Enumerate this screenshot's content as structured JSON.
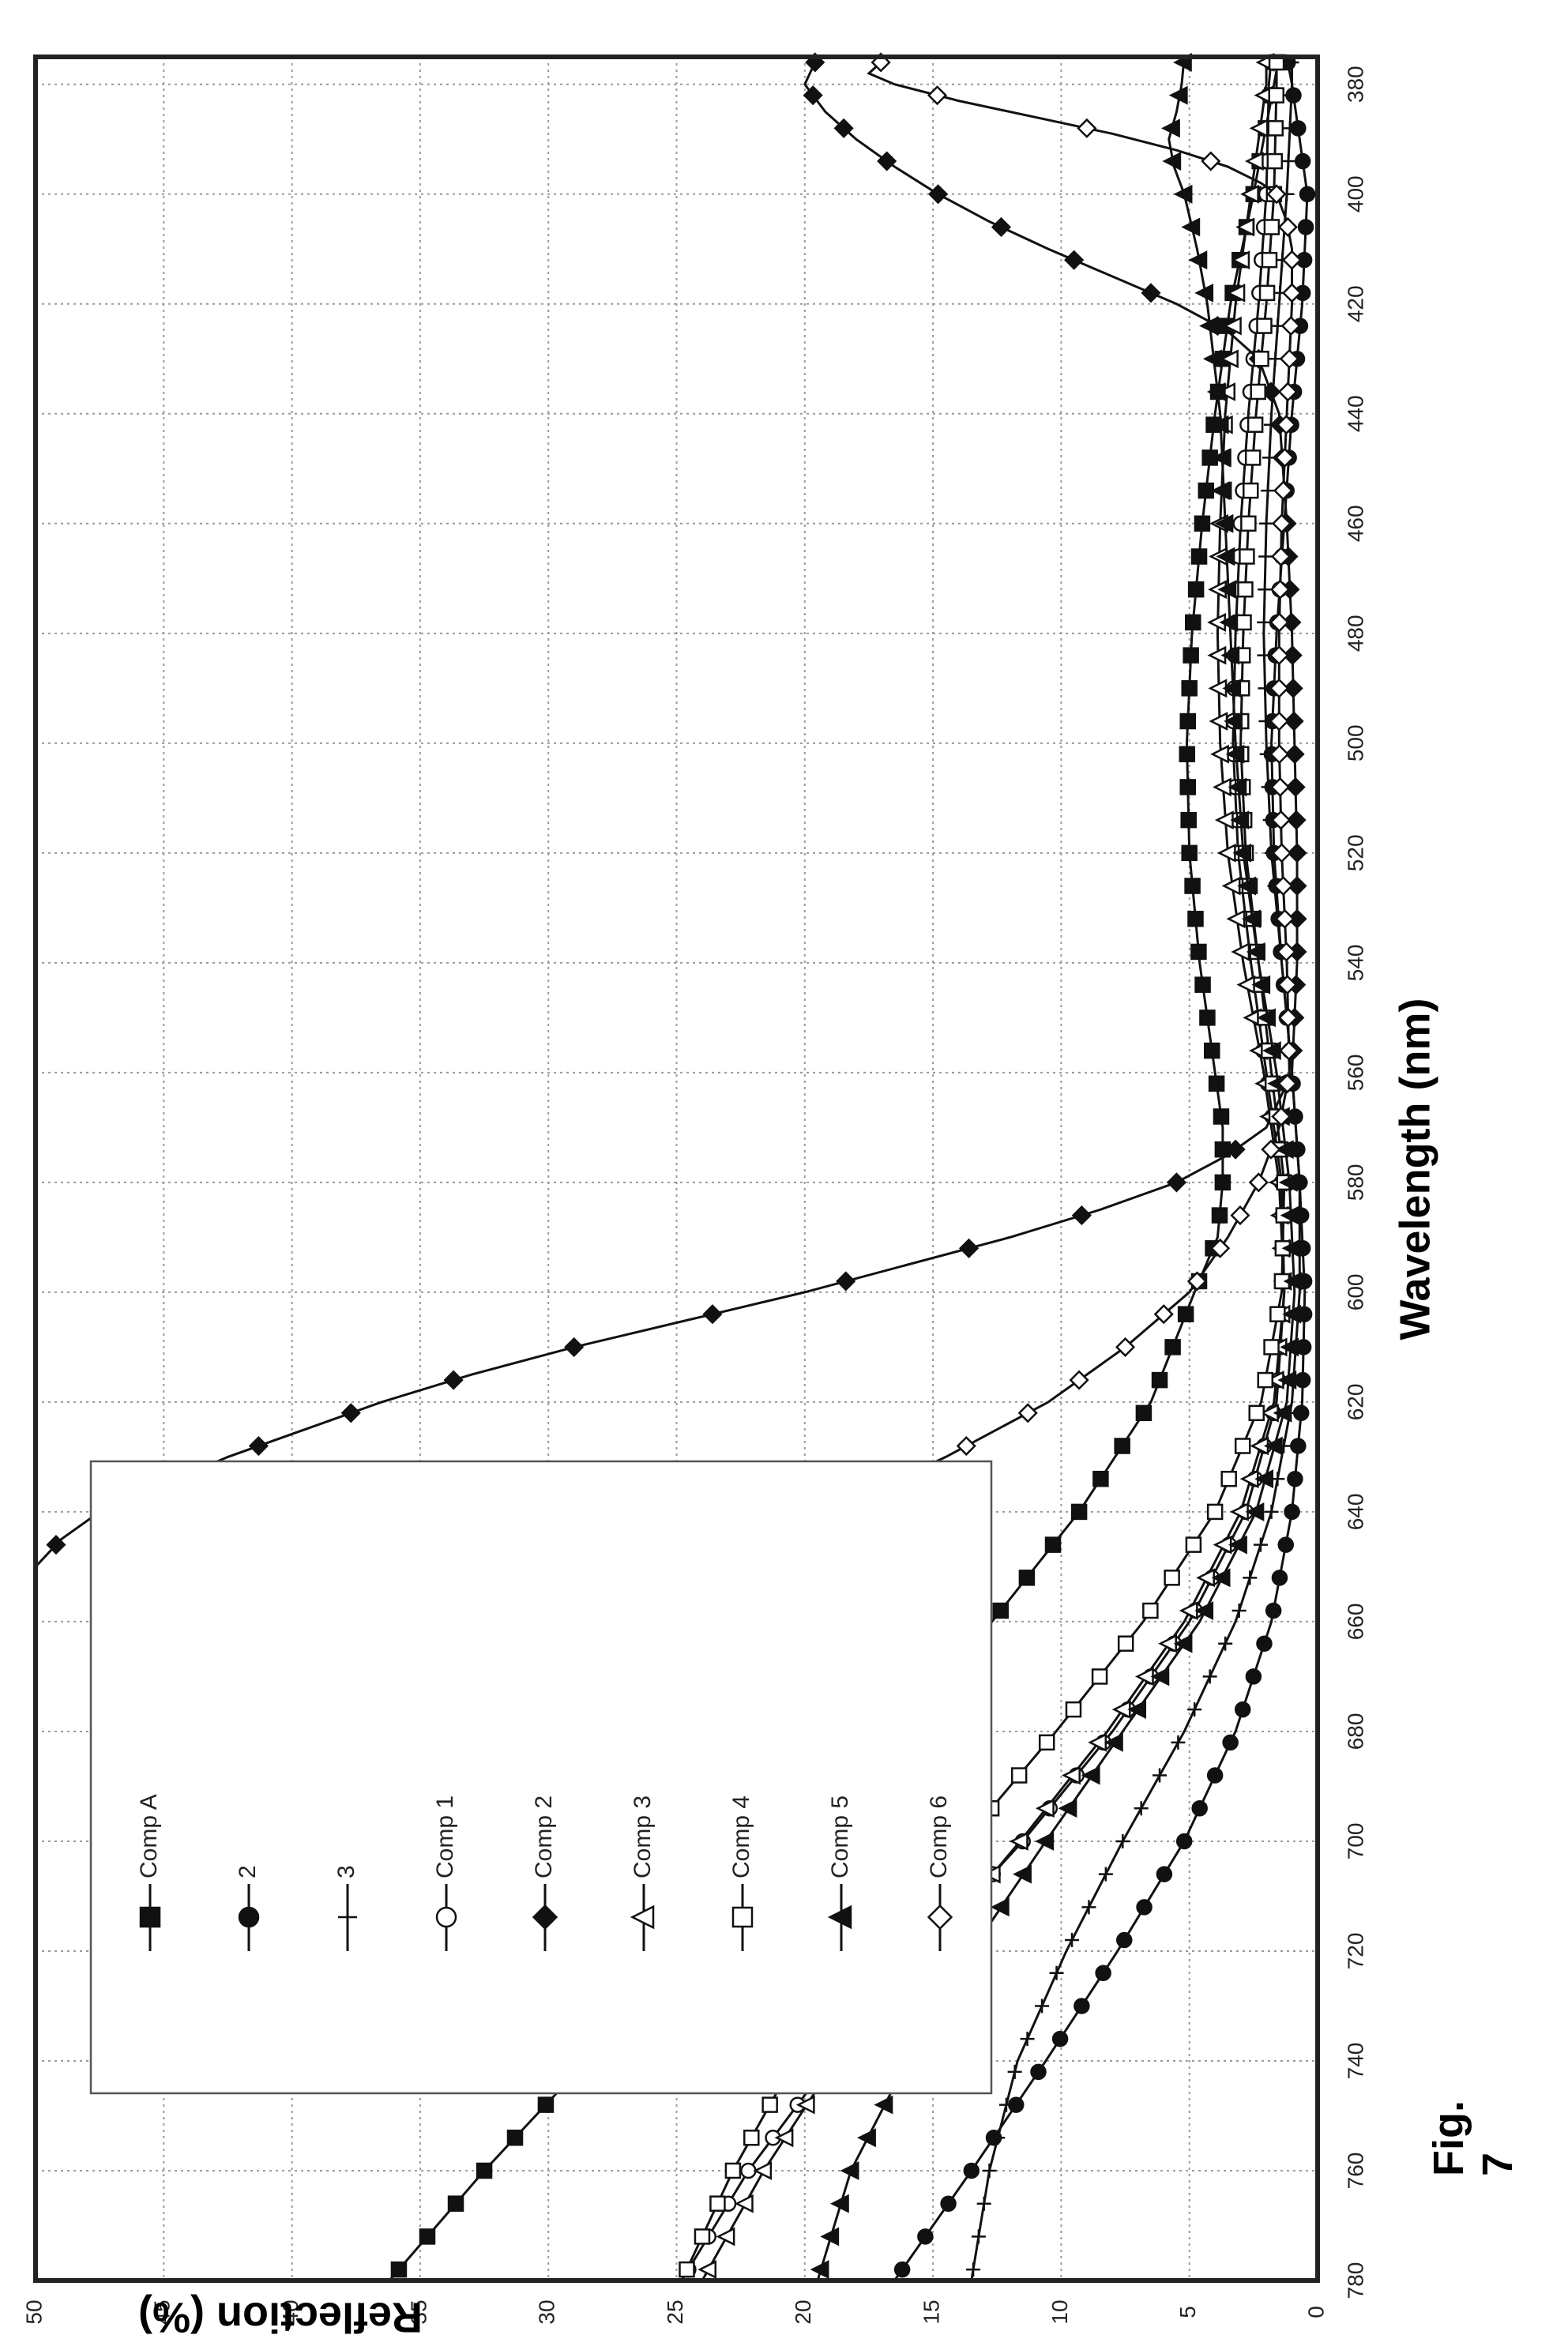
{
  "caption": "Fig. 7",
  "chart_data": {
    "type": "line",
    "title": "",
    "xlabel": "Wavelength (nm)",
    "ylabel": "Reflection (%)",
    "xlim": [
      375,
      780
    ],
    "ylim": [
      0,
      50
    ],
    "x_ticks": [
      380,
      400,
      420,
      440,
      460,
      480,
      500,
      520,
      540,
      560,
      580,
      600,
      620,
      640,
      660,
      680,
      700,
      720,
      740,
      760,
      780
    ],
    "y_ticks": [
      0,
      5,
      10,
      15,
      20,
      25,
      30,
      35,
      40,
      45,
      50
    ],
    "grid": true,
    "legend_position": "upper-left",
    "series": [
      {
        "name": "Comp A",
        "marker": "square-filled",
        "x": [
          375,
          380,
          400,
          420,
          440,
          460,
          480,
          500,
          520,
          540,
          560,
          570,
          580,
          590,
          600,
          620,
          640,
          660,
          680,
          700,
          720,
          740,
          760,
          780
        ],
        "y": [
          1.5,
          1.7,
          2.5,
          3.4,
          4.0,
          4.5,
          4.9,
          5.1,
          5.0,
          4.6,
          4.0,
          3.7,
          3.7,
          3.9,
          4.8,
          6.5,
          9.3,
          12.7,
          16.2,
          20.5,
          24.5,
          28.5,
          32.5,
          36.2
        ]
      },
      {
        "name": "2",
        "marker": "circle-filled",
        "x": [
          375,
          380,
          400,
          420,
          440,
          460,
          480,
          500,
          520,
          540,
          560,
          580,
          600,
          620,
          640,
          660,
          680,
          700,
          720,
          740,
          760,
          780
        ],
        "y": [
          1.2,
          1.0,
          0.4,
          0.6,
          1.0,
          1.3,
          1.6,
          1.8,
          1.7,
          1.4,
          1.0,
          0.7,
          0.5,
          0.6,
          1.0,
          1.8,
          3.2,
          5.2,
          7.8,
          10.6,
          13.5,
          16.5
        ]
      },
      {
        "name": "3",
        "marker": "plus",
        "x": [
          375,
          380,
          400,
          420,
          440,
          460,
          480,
          500,
          520,
          540,
          560,
          580,
          600,
          620,
          640,
          660,
          680,
          700,
          720,
          740,
          760,
          780
        ],
        "y": [
          1.0,
          1.0,
          1.2,
          1.5,
          1.8,
          2.0,
          2.1,
          2.0,
          1.8,
          1.4,
          1.0,
          0.7,
          0.7,
          1.0,
          1.8,
          3.2,
          5.2,
          7.6,
          9.8,
          11.7,
          12.8,
          13.5
        ]
      },
      {
        "name": "Comp 1",
        "marker": "circle-open",
        "x": [
          375,
          380,
          400,
          420,
          440,
          460,
          480,
          500,
          520,
          540,
          560,
          580,
          600,
          620,
          640,
          660,
          680,
          700,
          720,
          740,
          760,
          780
        ],
        "y": [
          1.8,
          1.9,
          2.0,
          2.3,
          2.7,
          3.0,
          3.2,
          3.3,
          3.1,
          2.6,
          2.0,
          1.4,
          1.3,
          1.6,
          2.8,
          5.0,
          8.0,
          11.5,
          15.4,
          19.0,
          22.2,
          24.8
        ]
      },
      {
        "name": "Comp 2",
        "marker": "diamond-filled",
        "x": [
          375,
          380,
          385,
          390,
          395,
          400,
          405,
          410,
          415,
          420,
          425,
          430,
          440,
          460,
          480,
          500,
          520,
          540,
          560,
          570,
          575,
          580,
          585,
          590,
          595,
          600,
          605,
          610,
          615,
          620,
          625,
          630,
          635,
          640,
          645,
          650
        ],
        "y": [
          19.5,
          20.0,
          19.2,
          18.0,
          16.5,
          14.8,
          12.8,
          10.5,
          8.0,
          5.5,
          3.5,
          2.3,
          1.5,
          1.2,
          1.0,
          0.9,
          0.8,
          0.8,
          1.0,
          2.0,
          3.5,
          5.5,
          8.5,
          12.0,
          16.0,
          20.0,
          24.5,
          29.0,
          33.0,
          36.5,
          39.5,
          42.5,
          45.0,
          47.5,
          49.0,
          50.0
        ]
      },
      {
        "name": "Comp 3",
        "marker": "triangle-open",
        "x": [
          375,
          380,
          400,
          420,
          440,
          460,
          480,
          500,
          520,
          540,
          560,
          580,
          600,
          620,
          640,
          660,
          680,
          700,
          720,
          740,
          760,
          780
        ],
        "y": [
          2.0,
          2.0,
          2.6,
          3.2,
          3.6,
          3.8,
          3.9,
          3.8,
          3.5,
          2.9,
          2.1,
          1.5,
          1.3,
          1.7,
          3.0,
          5.2,
          8.2,
          11.6,
          15.2,
          18.8,
          21.6,
          24.0
        ]
      },
      {
        "name": "Comp 4",
        "marker": "square-open",
        "x": [
          375,
          380,
          400,
          420,
          440,
          460,
          480,
          500,
          520,
          540,
          560,
          580,
          600,
          620,
          640,
          660,
          680,
          700,
          720,
          740,
          760,
          780
        ],
        "y": [
          1.6,
          1.6,
          1.7,
          2.0,
          2.4,
          2.7,
          2.9,
          3.0,
          2.8,
          2.3,
          1.8,
          1.3,
          1.4,
          2.2,
          4.0,
          6.8,
          10.2,
          13.8,
          17.2,
          20.4,
          22.8,
          24.8
        ]
      },
      {
        "name": "Comp 5",
        "marker": "triangle-filled",
        "x": [
          375,
          380,
          385,
          390,
          395,
          400,
          410,
          420,
          440,
          460,
          480,
          500,
          520,
          540,
          560,
          580,
          600,
          620,
          640,
          660,
          680,
          700,
          720,
          740,
          760,
          780
        ],
        "y": [
          5.2,
          5.3,
          5.5,
          5.8,
          5.6,
          5.2,
          4.7,
          4.3,
          3.8,
          3.6,
          3.4,
          3.2,
          2.9,
          2.3,
          1.6,
          1.1,
          0.9,
          1.2,
          2.4,
          4.6,
          7.6,
          10.6,
          13.5,
          16.0,
          18.2,
          19.5
        ]
      },
      {
        "name": "Comp 6",
        "marker": "diamond-open",
        "x": [
          375,
          378,
          380,
          383,
          386,
          389,
          392,
          395,
          398,
          400,
          405,
          410,
          420,
          440,
          460,
          480,
          500,
          520,
          540,
          560,
          570,
          580,
          590,
          600,
          610,
          620,
          630,
          640,
          650,
          660,
          670,
          680,
          690,
          700,
          705,
          710
        ],
        "y": [
          16.8,
          17.5,
          16.5,
          14.0,
          11.0,
          8.0,
          5.5,
          3.5,
          2.2,
          1.6,
          1.2,
          1.0,
          1.0,
          1.2,
          1.4,
          1.5,
          1.5,
          1.4,
          1.2,
          1.1,
          1.5,
          2.3,
          3.5,
          5.0,
          7.5,
          10.5,
          14.5,
          19.0,
          23.5,
          28.0,
          31.8,
          35.5,
          39.0,
          42.5,
          44.5,
          46.2
        ]
      }
    ]
  }
}
